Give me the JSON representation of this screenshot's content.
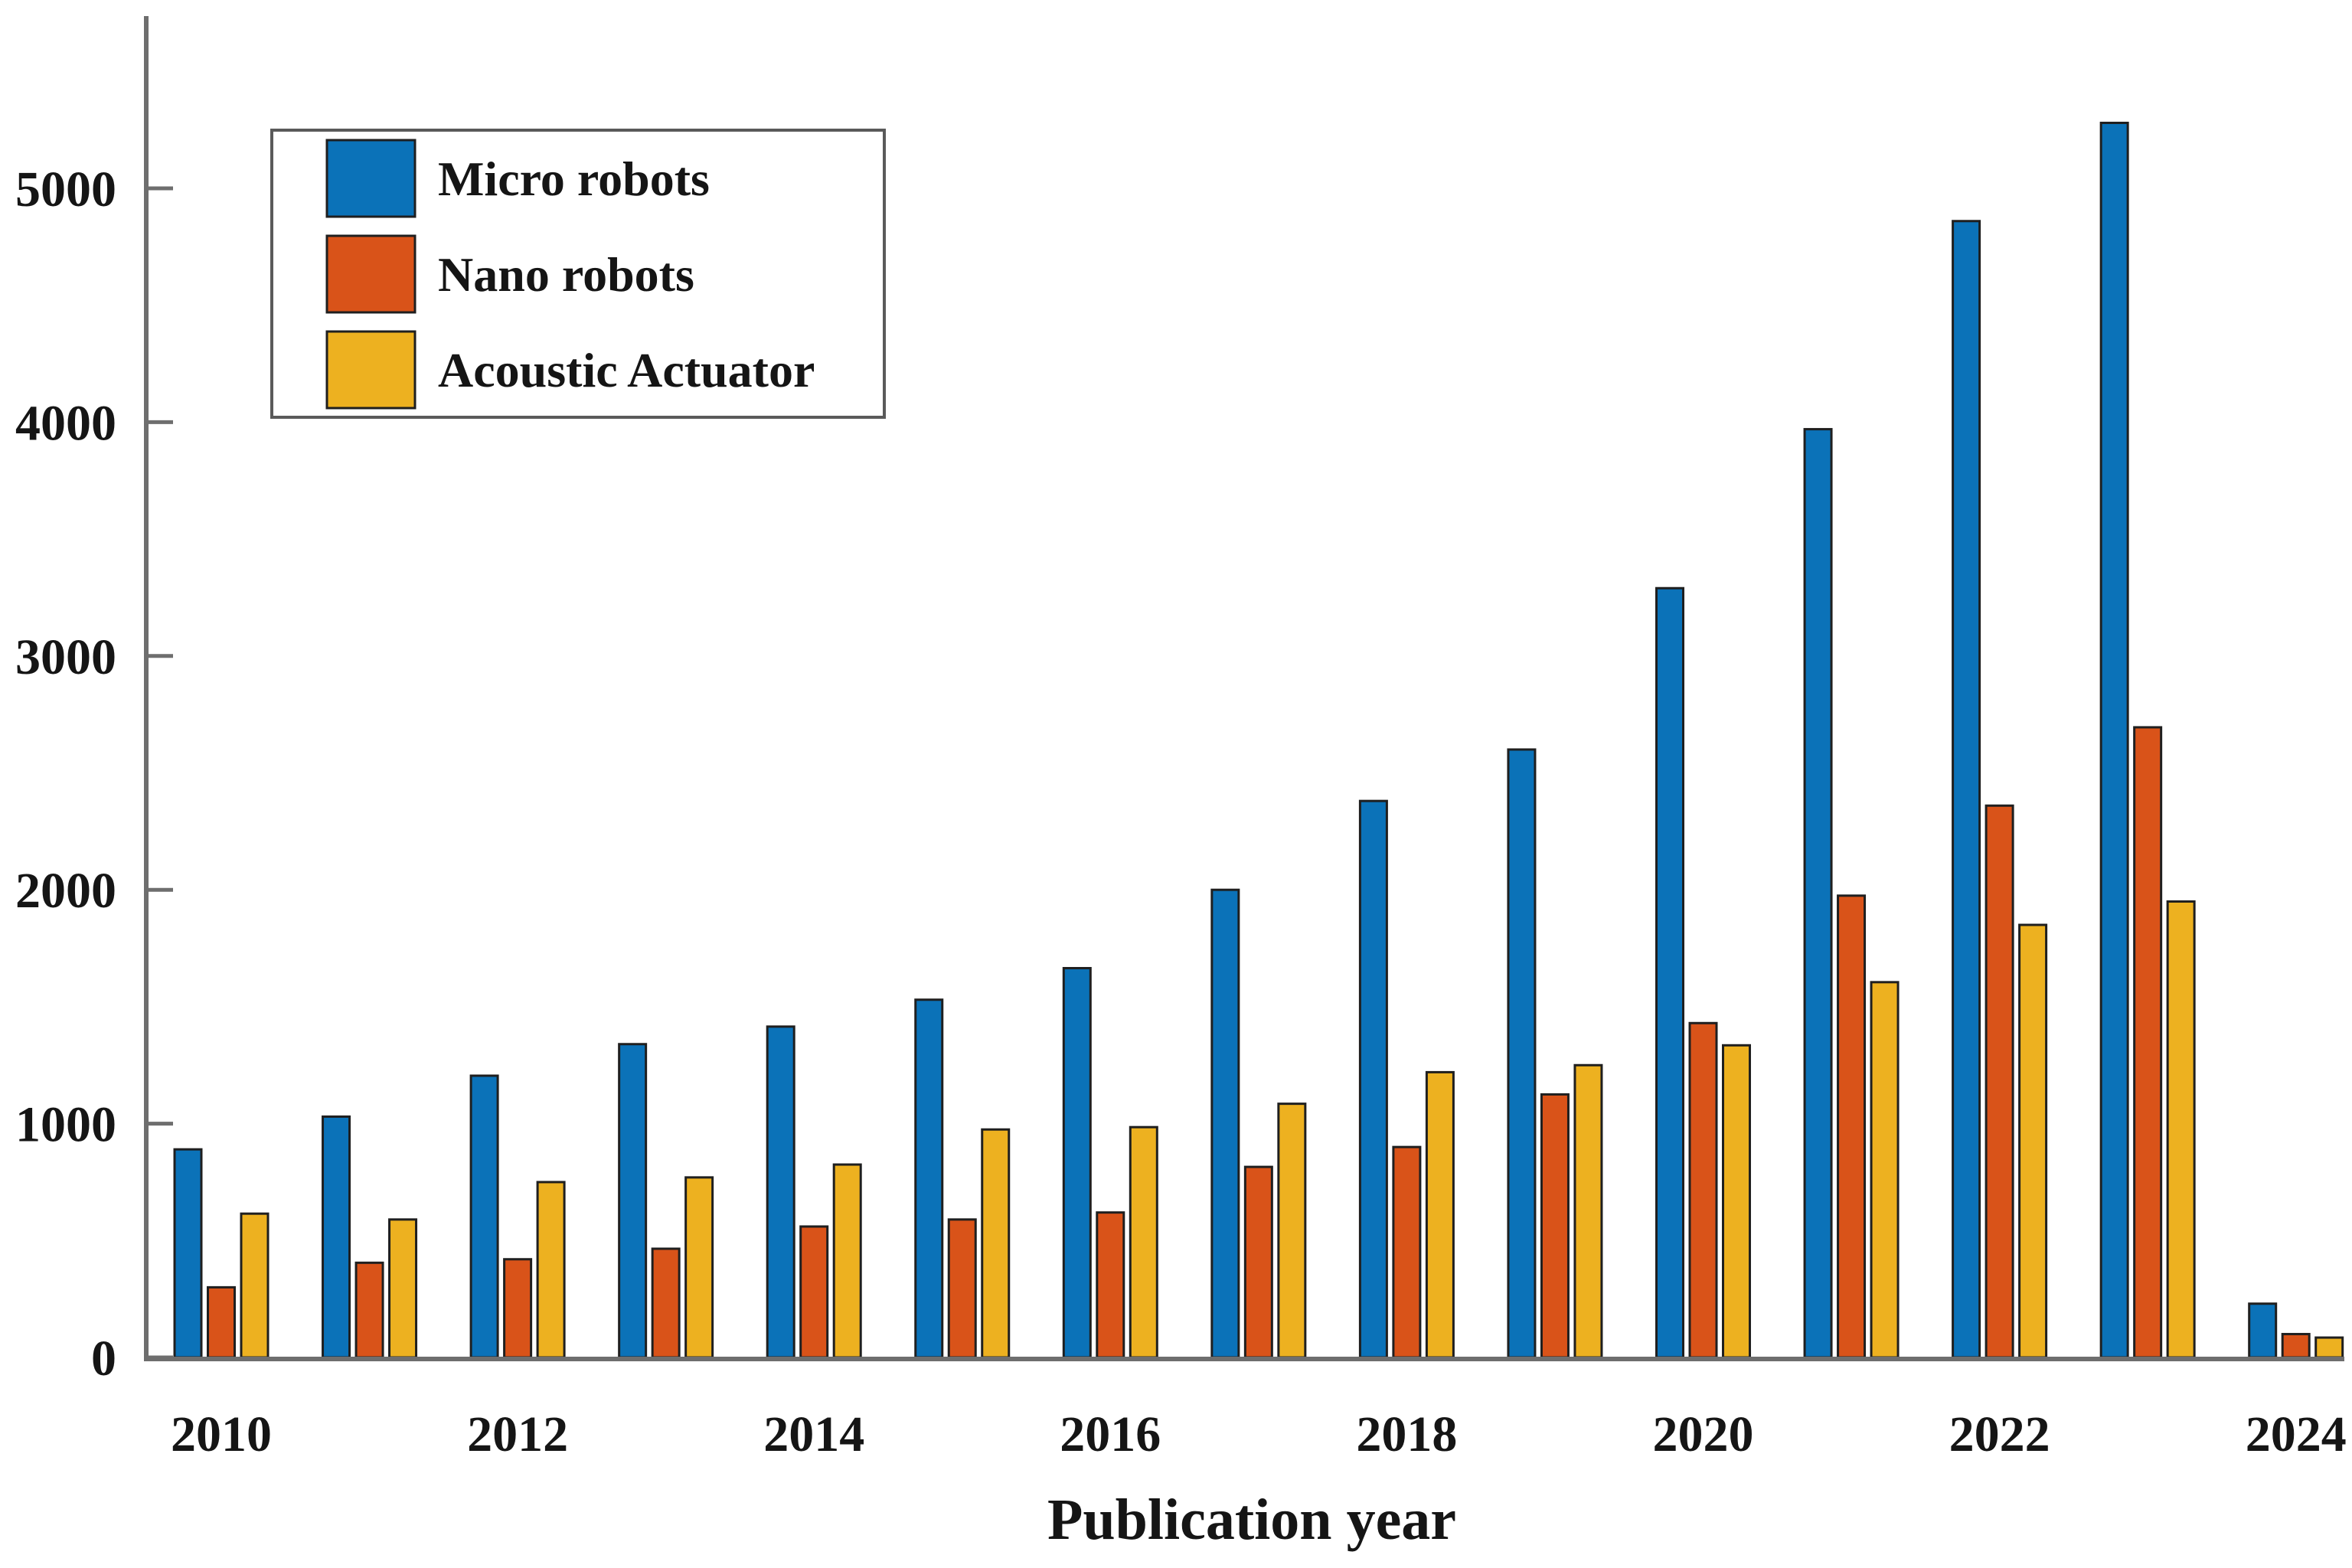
{
  "figure": {
    "background": "#ffffff",
    "axis_color": "#6e6e6e",
    "text_color": "#151515",
    "bar_edge_color": "#1f1f1f",
    "legend_border_color": "#5a5a5a"
  },
  "chart_data": {
    "type": "bar",
    "title": "",
    "xlabel": "Publication year",
    "ylabel": "",
    "categories": [
      "2010",
      "2011",
      "2012",
      "2013",
      "2014",
      "2015",
      "2016",
      "2017",
      "2018",
      "2019",
      "2020",
      "2021",
      "2022",
      "2023",
      "2024"
    ],
    "x_tick_labels": [
      "2010",
      "2012",
      "2014",
      "2016",
      "2018",
      "2020",
      "2022",
      "2024"
    ],
    "y_ticks": [
      0,
      1000,
      2000,
      3000,
      4000,
      5000
    ],
    "ylim": [
      0,
      5700
    ],
    "grid": false,
    "legend_position": "top-left",
    "series": [
      {
        "name": "Micro robots",
        "color": "#0B72B8",
        "values": [
          890,
          1030,
          1205,
          1340,
          1415,
          1530,
          1665,
          2000,
          2380,
          2600,
          3290,
          3970,
          4860,
          5280,
          230
        ]
      },
      {
        "name": "Nano robots",
        "color": "#D95319",
        "values": [
          300,
          405,
          420,
          465,
          560,
          590,
          620,
          815,
          900,
          1125,
          1430,
          1975,
          2360,
          2695,
          100
        ]
      },
      {
        "name": "Acoustic Actuator",
        "color": "#EDB120",
        "values": [
          615,
          590,
          750,
          770,
          825,
          975,
          985,
          1085,
          1220,
          1250,
          1335,
          1605,
          1850,
          1950,
          85
        ]
      }
    ]
  }
}
